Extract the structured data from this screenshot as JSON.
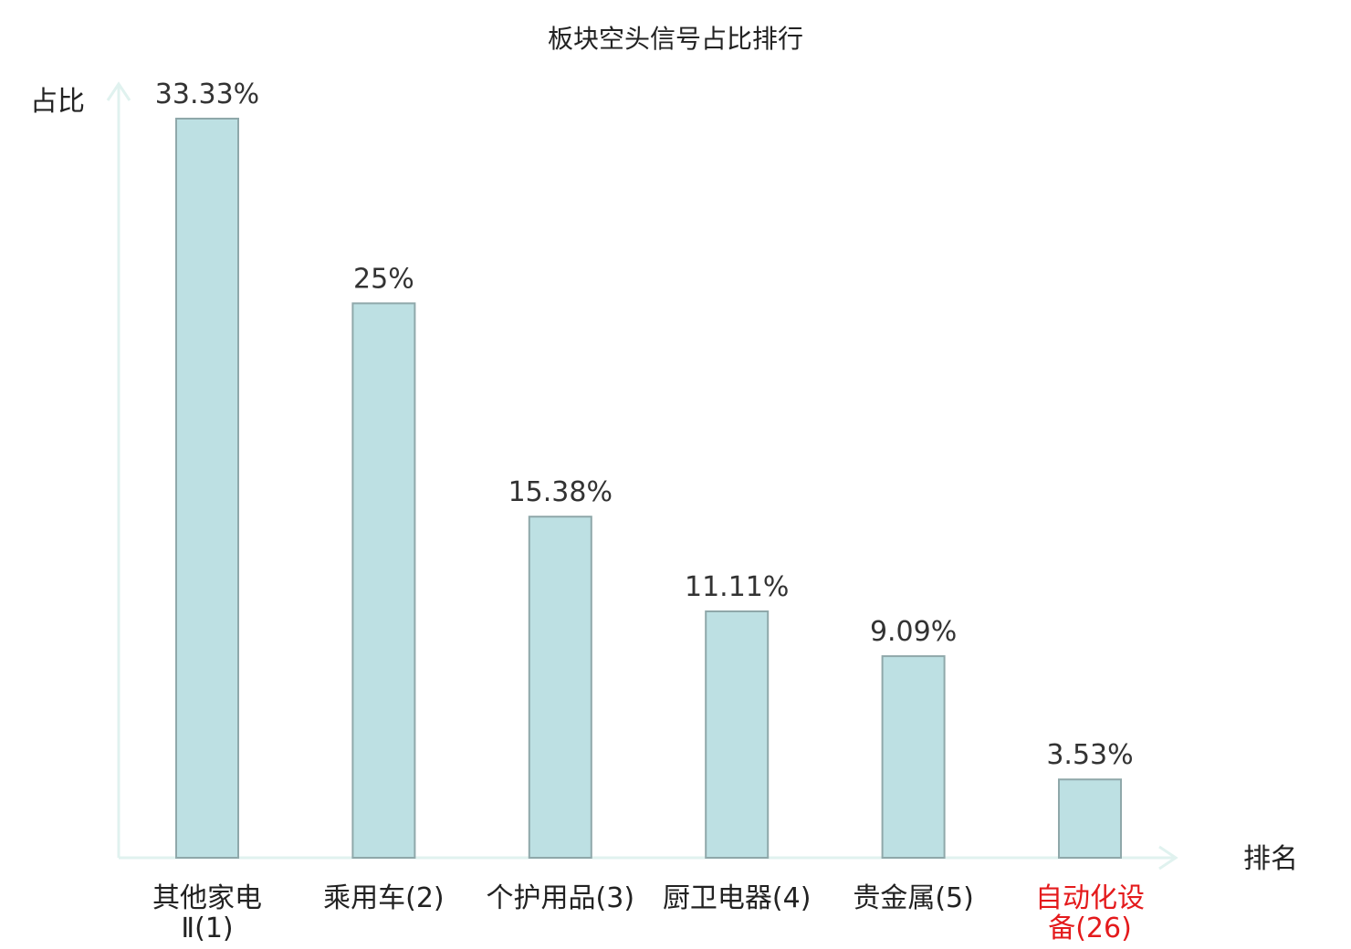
{
  "chart_data": {
    "type": "bar",
    "title": "板块空头信号占比排行",
    "xlabel": "排名",
    "ylabel": "占比",
    "ylim": [
      0,
      35
    ],
    "grid": false,
    "legend": "none",
    "categories": [
      [
        "其他家电",
        "Ⅱ(1)"
      ],
      [
        "乘用车(2)"
      ],
      [
        "个护用品(3)"
      ],
      [
        "厨卫电器(4)"
      ],
      [
        "贵金属(5)"
      ],
      [
        "自动化设",
        "备(26)"
      ]
    ],
    "values": [
      33.33,
      25,
      15.38,
      11.11,
      9.09,
      3.53
    ],
    "value_labels": [
      "33.33%",
      "25%",
      "15.38%",
      "11.11%",
      "9.09%",
      "3.53%"
    ],
    "highlighted": [
      false,
      false,
      false,
      false,
      false,
      true
    ]
  },
  "colors": {
    "bar_fill": "#bde0e3",
    "bar_stroke": "#8fa8aa",
    "axis": "#e0f2ef",
    "text": "#222222",
    "value_text": "#333333",
    "highlight": "#e41a1c"
  }
}
